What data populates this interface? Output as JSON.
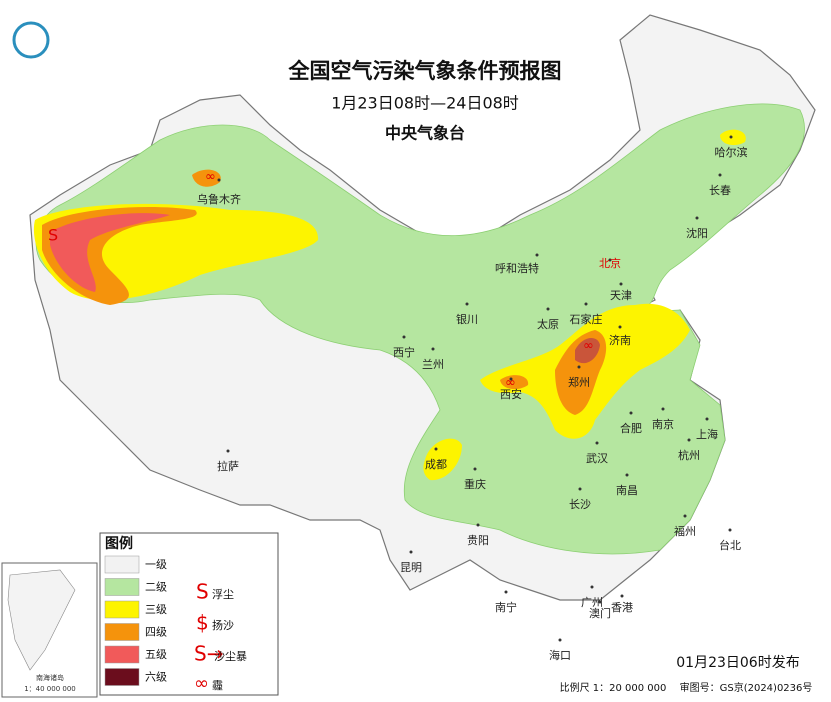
{
  "header": {
    "title": "全国空气污染气象条件预报图",
    "subtitle": "1月23日08时—24日08时",
    "agency": "中央气象台"
  },
  "legend": {
    "title": "图例",
    "levels": [
      {
        "label": "一级",
        "color": "#f2f2f2"
      },
      {
        "label": "二级",
        "color": "#b5e6a0"
      },
      {
        "label": "三级",
        "color": "#fdf400"
      },
      {
        "label": "四级",
        "color": "#f5930c"
      },
      {
        "label": "五级",
        "color": "#f15a5a"
      },
      {
        "label": "六级",
        "color": "#6b0d1d"
      }
    ],
    "symbols": [
      "浮尘",
      "扬沙",
      "沙尘暴",
      "霾"
    ]
  },
  "cities": [
    {
      "name": "乌鲁木齐"
    },
    {
      "name": "哈尔滨"
    },
    {
      "name": "长春"
    },
    {
      "name": "沈阳"
    },
    {
      "name": "北京"
    },
    {
      "name": "天津"
    },
    {
      "name": "呼和浩特"
    },
    {
      "name": "银川"
    },
    {
      "name": "太原"
    },
    {
      "name": "石家庄"
    },
    {
      "name": "济南"
    },
    {
      "name": "西宁"
    },
    {
      "name": "兰州"
    },
    {
      "name": "西安"
    },
    {
      "name": "郑州"
    },
    {
      "name": "合肥"
    },
    {
      "name": "南京"
    },
    {
      "name": "上海"
    },
    {
      "name": "杭州"
    },
    {
      "name": "武汉"
    },
    {
      "name": "成都"
    },
    {
      "name": "重庆"
    },
    {
      "name": "长沙"
    },
    {
      "name": "南昌"
    },
    {
      "name": "拉萨"
    },
    {
      "name": "贵阳"
    },
    {
      "name": "福州"
    },
    {
      "name": "台北"
    },
    {
      "name": "昆明"
    },
    {
      "name": "南宁"
    },
    {
      "name": "广州"
    },
    {
      "name": "澳门"
    },
    {
      "name": "香港"
    },
    {
      "name": "海口"
    }
  ],
  "inset": {
    "label": "南海诸岛",
    "scale": "1：40 000 000"
  },
  "footer": {
    "issued": "01月23日06时发布",
    "scale": "比例尺 1：20 000 000",
    "approval": "审图号：GS京(2024)0236号"
  }
}
